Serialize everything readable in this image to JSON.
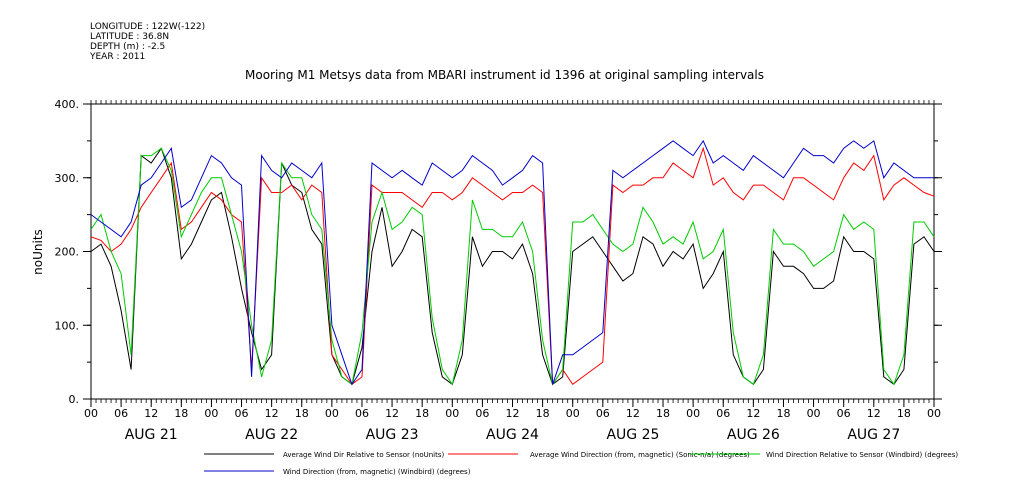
{
  "meta": {
    "longitude": "LONGITUDE : 122W(-122)",
    "latitude": "LATITUDE : 36.8N",
    "depth": "DEPTH (m) : -2.5",
    "year": "YEAR : 2011"
  },
  "chart_data": {
    "type": "line",
    "title": "Mooring M1 Metsys data from MBARI instrument id 1396 at original sampling intervals",
    "ylabel": "noUnits",
    "xlabel": "",
    "ylim": [
      0,
      400
    ],
    "yticks": [
      "0.",
      "100.",
      "200.",
      "300.",
      "400."
    ],
    "xlim_hours": [
      0,
      168
    ],
    "hour_ticks": [
      "00",
      "06",
      "12",
      "18",
      "00",
      "06",
      "12",
      "18",
      "00",
      "06",
      "12",
      "18",
      "00",
      "06",
      "12",
      "18",
      "00",
      "06",
      "12",
      "18",
      "00",
      "06",
      "12",
      "18",
      "00",
      "06",
      "12",
      "18",
      "00"
    ],
    "day_labels": [
      "AUG 21",
      "AUG 22",
      "AUG 23",
      "AUG 24",
      "AUG 25",
      "AUG 26",
      "AUG 27"
    ],
    "grid": false,
    "legend_placement": "bottom",
    "series": [
      {
        "name": "Average Wind Dir Relative to Sensor (noUnits)",
        "color": "#000000",
        "x": [
          0,
          2,
          4,
          6,
          8,
          10,
          12,
          14,
          16,
          18,
          20,
          22,
          24,
          26,
          28,
          30,
          32,
          34,
          36,
          38,
          40,
          42,
          44,
          46,
          48,
          50,
          52,
          54,
          56,
          58,
          60,
          62,
          64,
          66,
          68,
          70,
          72,
          74,
          76,
          78,
          80,
          82,
          84,
          86,
          88,
          90,
          92,
          94,
          96,
          98,
          100,
          102,
          104,
          106,
          108,
          110,
          112,
          114,
          116,
          118,
          120,
          122,
          124,
          126,
          128,
          130,
          132,
          134,
          136,
          138,
          140,
          142,
          144,
          146,
          148,
          150,
          152,
          154,
          156,
          158,
          160,
          162,
          164,
          166,
          168
        ],
        "values": [
          200,
          210,
          180,
          120,
          40,
          330,
          320,
          340,
          300,
          190,
          210,
          240,
          270,
          280,
          220,
          150,
          90,
          40,
          60,
          320,
          290,
          280,
          230,
          210,
          60,
          30,
          20,
          70,
          200,
          260,
          180,
          200,
          230,
          220,
          90,
          30,
          20,
          60,
          220,
          180,
          200,
          200,
          190,
          210,
          170,
          60,
          20,
          30,
          200,
          210,
          220,
          200,
          180,
          160,
          170,
          220,
          210,
          180,
          200,
          190,
          210,
          150,
          170,
          200,
          60,
          30,
          20,
          40,
          200,
          180,
          180,
          170,
          150,
          150,
          160,
          220,
          200,
          200,
          190,
          30,
          20,
          40,
          210,
          220,
          200
        ]
      },
      {
        "name": "Average Wind Direction (from, magnetic) (Sonic-n/a) (degrees)",
        "color": "#ff0000",
        "x": [
          0,
          2,
          4,
          6,
          8,
          10,
          12,
          14,
          16,
          18,
          20,
          22,
          24,
          26,
          28,
          30,
          32,
          34,
          36,
          38,
          40,
          42,
          44,
          46,
          48,
          50,
          52,
          54,
          56,
          58,
          60,
          62,
          64,
          66,
          68,
          70,
          72,
          74,
          76,
          78,
          80,
          82,
          84,
          86,
          88,
          90,
          92,
          94,
          96,
          98,
          100,
          102,
          104,
          106,
          108,
          110,
          112,
          114,
          116,
          118,
          120,
          122,
          124,
          126,
          128,
          130,
          132,
          134,
          136,
          138,
          140,
          142,
          144,
          146,
          148,
          150,
          152,
          154,
          156,
          158,
          160,
          162,
          164,
          166,
          168
        ],
        "values": [
          220,
          215,
          200,
          210,
          230,
          260,
          280,
          300,
          320,
          230,
          240,
          260,
          280,
          270,
          250,
          240,
          40,
          300,
          280,
          280,
          290,
          270,
          290,
          280,
          60,
          40,
          20,
          30,
          290,
          280,
          280,
          280,
          270,
          260,
          280,
          280,
          270,
          280,
          300,
          290,
          280,
          270,
          280,
          280,
          290,
          280,
          20,
          40,
          20,
          30,
          40,
          50,
          290,
          280,
          290,
          290,
          300,
          300,
          320,
          310,
          300,
          340,
          290,
          300,
          280,
          270,
          290,
          290,
          280,
          270,
          300,
          300,
          290,
          280,
          270,
          300,
          320,
          310,
          330,
          270,
          290,
          300,
          290,
          280,
          275
        ]
      },
      {
        "name": "Wind Direction Relative to Sensor (Windbird) (degrees)",
        "color": "#00cc00",
        "x": [
          0,
          2,
          4,
          6,
          8,
          10,
          12,
          14,
          16,
          18,
          20,
          22,
          24,
          26,
          28,
          30,
          32,
          34,
          36,
          38,
          40,
          42,
          44,
          46,
          48,
          50,
          52,
          54,
          56,
          58,
          60,
          62,
          64,
          66,
          68,
          70,
          72,
          74,
          76,
          78,
          80,
          82,
          84,
          86,
          88,
          90,
          92,
          94,
          96,
          98,
          100,
          102,
          104,
          106,
          108,
          110,
          112,
          114,
          116,
          118,
          120,
          122,
          124,
          126,
          128,
          130,
          132,
          134,
          136,
          138,
          140,
          142,
          144,
          146,
          148,
          150,
          152,
          154,
          156,
          158,
          160,
          162,
          164,
          166,
          168
        ],
        "values": [
          230,
          250,
          200,
          170,
          60,
          330,
          330,
          340,
          310,
          220,
          250,
          280,
          300,
          300,
          250,
          200,
          100,
          30,
          80,
          320,
          300,
          300,
          250,
          230,
          80,
          30,
          20,
          90,
          240,
          280,
          230,
          240,
          260,
          250,
          110,
          40,
          20,
          80,
          270,
          230,
          230,
          220,
          220,
          240,
          200,
          80,
          20,
          40,
          240,
          240,
          250,
          230,
          210,
          200,
          210,
          260,
          240,
          210,
          220,
          210,
          240,
          190,
          200,
          230,
          90,
          30,
          20,
          60,
          230,
          210,
          210,
          200,
          180,
          190,
          200,
          250,
          230,
          240,
          230,
          40,
          20,
          60,
          240,
          240,
          220
        ]
      },
      {
        "name": "Wind Direction (from, magnetic) (Windbird) (degrees)",
        "color": "#0000cc",
        "x": [
          0,
          2,
          4,
          6,
          8,
          10,
          12,
          14,
          16,
          18,
          20,
          22,
          24,
          26,
          28,
          30,
          32,
          34,
          36,
          38,
          40,
          42,
          44,
          46,
          48,
          50,
          52,
          54,
          56,
          58,
          60,
          62,
          64,
          66,
          68,
          70,
          72,
          74,
          76,
          78,
          80,
          82,
          84,
          86,
          88,
          90,
          92,
          94,
          96,
          98,
          100,
          102,
          104,
          106,
          108,
          110,
          112,
          114,
          116,
          118,
          120,
          122,
          124,
          126,
          128,
          130,
          132,
          134,
          136,
          138,
          140,
          142,
          144,
          146,
          148,
          150,
          152,
          154,
          156,
          158,
          160,
          162,
          164,
          166,
          168
        ],
        "values": [
          250,
          240,
          230,
          220,
          240,
          290,
          300,
          320,
          340,
          260,
          270,
          300,
          330,
          320,
          300,
          290,
          30,
          330,
          310,
          300,
          320,
          310,
          300,
          320,
          100,
          60,
          20,
          40,
          320,
          310,
          300,
          310,
          300,
          290,
          320,
          310,
          300,
          310,
          330,
          320,
          310,
          290,
          300,
          310,
          330,
          320,
          20,
          60,
          60,
          70,
          80,
          90,
          310,
          300,
          310,
          320,
          330,
          340,
          350,
          340,
          330,
          350,
          320,
          330,
          320,
          310,
          330,
          320,
          310,
          300,
          320,
          340,
          330,
          330,
          320,
          340,
          350,
          340,
          350,
          300,
          320,
          310,
          300,
          300,
          300
        ]
      }
    ]
  }
}
